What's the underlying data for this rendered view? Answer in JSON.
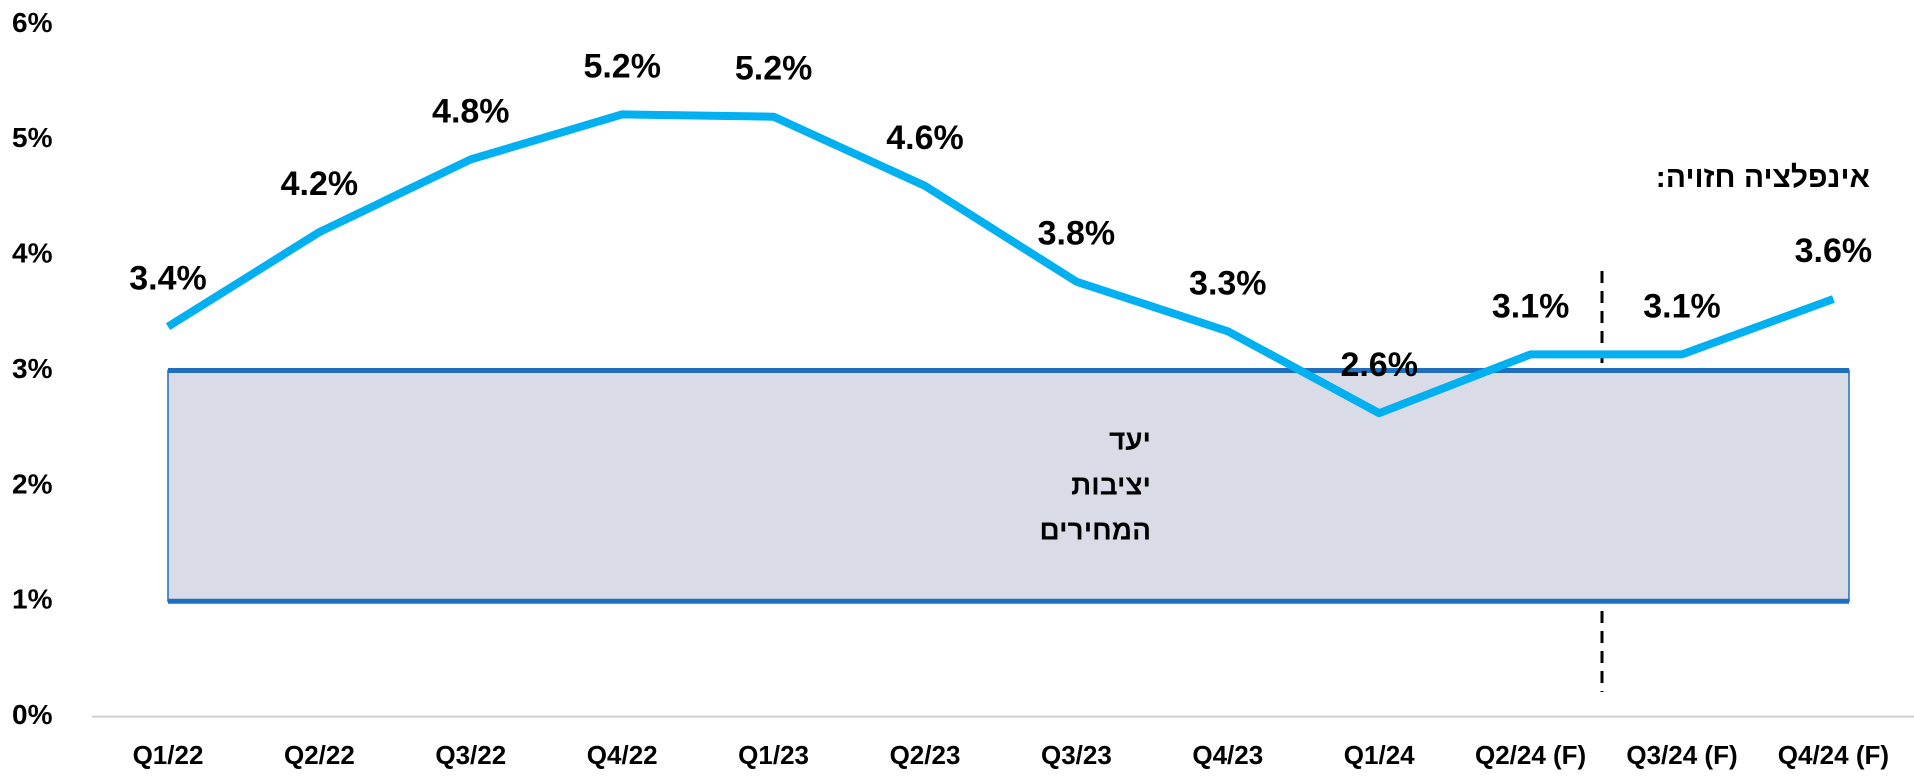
{
  "chart_data": {
    "type": "line",
    "categories": [
      "Q1/22",
      "Q2/22",
      "Q3/22",
      "Q4/22",
      "Q1/23",
      "Q2/23",
      "Q3/23",
      "Q4/23",
      "Q1/24",
      "Q2/24 (F)",
      "Q3/24 (F)",
      "Q4/24 (F)"
    ],
    "series": [
      {
        "color": "#00b0f0",
        "values": [
          3.38,
          4.2,
          4.83,
          5.22,
          5.2,
          4.6,
          3.77,
          3.34,
          2.63,
          3.14,
          3.14,
          3.62
        ],
        "value_labels": [
          "3.4%",
          "4.2%",
          "4.8%",
          "5.2%",
          "5.2%",
          "4.6%",
          "3.8%",
          "3.3%",
          "2.6%",
          "3.1%",
          "3.1%",
          "3.6%"
        ]
      }
    ],
    "ylim": [
      0,
      6
    ],
    "yticks": [
      {
        "value": 0,
        "label": "0%"
      },
      {
        "value": 1,
        "label": "1%"
      },
      {
        "value": 2,
        "label": "2%"
      },
      {
        "value": 3,
        "label": "3%"
      },
      {
        "value": 4,
        "label": "4%"
      },
      {
        "value": 5,
        "label": "5%"
      },
      {
        "value": 6,
        "label": "6%"
      }
    ],
    "target_range": {
      "low": 1,
      "high": 3,
      "color": "#d9dbe6",
      "label": [
        "יעד",
        "יציבות",
        "המחירים"
      ]
    },
    "annotation": "אינפלציה חזויה:"
  }
}
